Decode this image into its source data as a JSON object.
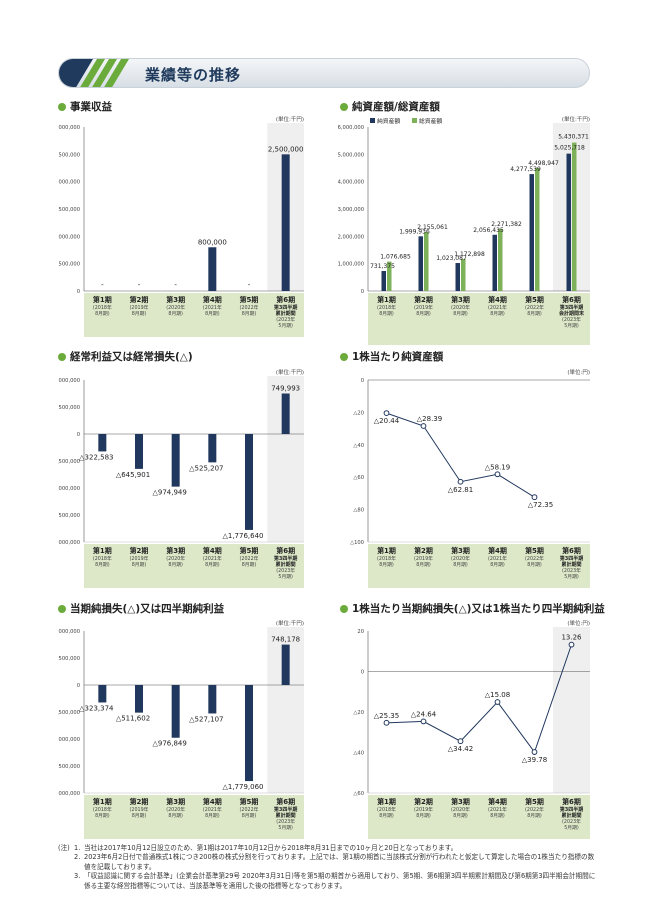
{
  "header": {
    "title": "業績等の推移"
  },
  "colors": {
    "navy": "#21385e",
    "green": "#7eb25a",
    "band": "#dde8c8",
    "bar_accent": "#6aab3b"
  },
  "unit_label": "(単位:千円)",
  "unit_label_yen": "(単位:円)",
  "periods": [
    {
      "main": "第1期",
      "sub1": "(2018年",
      "sub2": "8月期)"
    },
    {
      "main": "第2期",
      "sub1": "(2019年",
      "sub2": "8月期)"
    },
    {
      "main": "第3期",
      "sub1": "(2020年",
      "sub2": "8月期)"
    },
    {
      "main": "第4期",
      "sub1": "(2021年",
      "sub2": "8月期)"
    },
    {
      "main": "第5期",
      "sub1": "(2022年",
      "sub2": "8月期)"
    }
  ],
  "period6_cum": {
    "main": "第6期",
    "l2": "第3四半期",
    "l3": "累計期間",
    "sub1": "(2023年",
    "sub2": "5月期)"
  },
  "period6_end": {
    "main": "第6期",
    "l2": "第3四半期",
    "l3": "会計期間末",
    "sub1": "(2023年",
    "sub2": "5月期)"
  },
  "chart_data": [
    {
      "id": "revenue",
      "type": "bar",
      "title": "事業収益",
      "ylim": [
        0,
        3000000
      ],
      "ticks": [
        "3,000,000",
        "2,500,000",
        "2,000,000",
        "1,500,000",
        "1,000,000",
        "500,000",
        "0"
      ],
      "values": [
        null,
        null,
        null,
        800000,
        null,
        2500000
      ],
      "labels": [
        "-",
        "-",
        "-",
        "800,000",
        "-",
        "2,500,000"
      ]
    },
    {
      "id": "netassets",
      "type": "bar",
      "title": "純資産額/総資産額",
      "ylim": [
        0,
        6000000
      ],
      "legend": [
        "純資産額",
        "総資産額"
      ],
      "ticks": [
        "6,000,000",
        "5,000,000",
        "4,000,000",
        "3,000,000",
        "2,000,000",
        "1,000,000",
        "0"
      ],
      "series": [
        {
          "name": "純資産額",
          "values": [
            731375,
            1999936,
            1023087,
            2056435,
            4277539,
            5025718
          ],
          "labels": [
            "731,375",
            "1,999,936",
            "1,023,087",
            "2,056,435",
            "4,277,539",
            "5,025,718"
          ]
        },
        {
          "name": "総資産額",
          "values": [
            1076685,
            2155061,
            1172898,
            2271382,
            4498947,
            5430371
          ],
          "labels": [
            "1,076,685",
            "2,155,061",
            "1,172,898",
            "2,271,382",
            "4,498,947",
            "5,430,371"
          ]
        }
      ]
    },
    {
      "id": "ordinary",
      "type": "bar",
      "title": "経常利益又は経常損失(△)",
      "ylim": [
        -2000000,
        1000000
      ],
      "ticks": [
        "1,000,000",
        "500,000",
        "0",
        "△500,000",
        "△1,000,000",
        "△1,500,000",
        "△2,000,000"
      ],
      "values": [
        -322583,
        -645901,
        -974949,
        -525207,
        -1776640,
        749993
      ],
      "labels": [
        "△322,583",
        "△645,901",
        "△974,949",
        "△525,207",
        "△1,776,640",
        "749,993"
      ]
    },
    {
      "id": "bps",
      "type": "line",
      "title": "1株当たり純資産額",
      "ylim": [
        -100,
        0
      ],
      "ticks": [
        "0",
        "△20",
        "△40",
        "△60",
        "△80",
        "△100"
      ],
      "values": [
        -20.44,
        -28.39,
        -62.81,
        -58.19,
        -72.35
      ],
      "labels": [
        "△20.44",
        "△28.39",
        "△62.81",
        "△58.19",
        "△72.35"
      ]
    },
    {
      "id": "netincome",
      "type": "bar",
      "title": "当期純損失(△)又は四半期純利益",
      "ylim": [
        -2000000,
        1000000
      ],
      "ticks": [
        "1,000,000",
        "500,000",
        "0",
        "△500,000",
        "△1,000,000",
        "△1,500,000",
        "△2,000,000"
      ],
      "values": [
        -323374,
        -511602,
        -976849,
        -527107,
        -1779060,
        748178
      ],
      "labels": [
        "△323,374",
        "△511,602",
        "△976,849",
        "△527,107",
        "△1,779,060",
        "748,178"
      ]
    },
    {
      "id": "eps",
      "type": "line",
      "title": "1株当たり当期純損失(△)又は1株当たり四半期純利益",
      "ylim": [
        -60,
        20
      ],
      "ticks": [
        "20",
        "0",
        "△20",
        "△40",
        "△60"
      ],
      "values": [
        -25.35,
        -24.64,
        -34.42,
        -15.08,
        -39.78,
        13.26
      ],
      "labels": [
        "△25.35",
        "△24.64",
        "△34.42",
        "△15.08",
        "△39.78",
        "13.26"
      ]
    }
  ],
  "notes": {
    "lead": "(注)",
    "items": [
      {
        "n": "1.",
        "t": "当社は2017年10月12日設立のため、第1期は2017年10月12日から2018年8月31日までの10ヶ月と20日となっております。"
      },
      {
        "n": "2.",
        "t": "2023年6月2日付で普通株式1株につき200株の株式分割を行っております。上記では、第1期の期首に当該株式分割が行われたと仮定して算定した場合の1株当たり指標の数値を記載しております。"
      },
      {
        "n": "3.",
        "t": "「収益認識に関する会計基準」(企業会計基準第29号 2020年3月31日)等を第5期の期首から適用しており、第5期、第6期第3四半期累計期間及び第6期第3四半期会計期間に係る主要な経営指標等については、当該基準等を適用した後の指標等となっております。"
      }
    ]
  }
}
